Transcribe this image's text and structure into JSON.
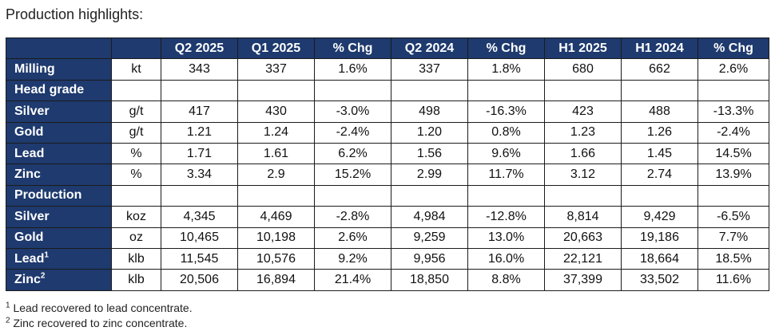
{
  "title": "Production highlights:",
  "headers": [
    "",
    "",
    "Q2 2025",
    "Q1 2025",
    "% Chg",
    "Q2 2024",
    "% Chg",
    "H1 2025",
    "H1 2024",
    "% Chg"
  ],
  "rows": [
    {
      "label": "Milling",
      "sup": "",
      "unit": "kt",
      "values": [
        "343",
        "337",
        "1.6%",
        "337",
        "1.8%",
        "680",
        "662",
        "2.6%"
      ]
    },
    {
      "label": "Head grade",
      "sup": "",
      "unit": "",
      "values": [
        "",
        "",
        "",
        "",
        "",
        "",
        "",
        ""
      ]
    },
    {
      "label": "Silver",
      "sup": "",
      "unit": "g/t",
      "values": [
        "417",
        "430",
        "-3.0%",
        "498",
        "-16.3%",
        "423",
        "488",
        "-13.3%"
      ]
    },
    {
      "label": "Gold",
      "sup": "",
      "unit": "g/t",
      "values": [
        "1.21",
        "1.24",
        "-2.4%",
        "1.20",
        "0.8%",
        "1.23",
        "1.26",
        "-2.4%"
      ]
    },
    {
      "label": "Lead",
      "sup": "",
      "unit": "%",
      "values": [
        "1.71",
        "1.61",
        "6.2%",
        "1.56",
        "9.6%",
        "1.66",
        "1.45",
        "14.5%"
      ]
    },
    {
      "label": "Zinc",
      "sup": "",
      "unit": "%",
      "values": [
        "3.34",
        "2.9",
        "15.2%",
        "2.99",
        "11.7%",
        "3.12",
        "2.74",
        "13.9%"
      ]
    },
    {
      "label": "Production",
      "sup": "",
      "unit": "",
      "values": [
        "",
        "",
        "",
        "",
        "",
        "",
        "",
        ""
      ]
    },
    {
      "label": "Silver",
      "sup": "",
      "unit": "koz",
      "values": [
        "4,345",
        "4,469",
        "-2.8%",
        "4,984",
        "-12.8%",
        "8,814",
        "9,429",
        "-6.5%"
      ]
    },
    {
      "label": "Gold",
      "sup": "",
      "unit": "oz",
      "values": [
        "10,465",
        "10,198",
        "2.6%",
        "9,259",
        "13.0%",
        "20,663",
        "19,186",
        "7.7%"
      ]
    },
    {
      "label": "Lead",
      "sup": "1",
      "unit": "klb",
      "values": [
        "11,545",
        "10,576",
        "9.2%",
        "9,956",
        "16.0%",
        "22,121",
        "18,664",
        "18.5%"
      ]
    },
    {
      "label": "Zinc",
      "sup": "2",
      "unit": "klb",
      "values": [
        "20,506",
        "16,894",
        "21.4%",
        "18,850",
        "8.8%",
        "37,399",
        "33,502",
        "11.6%"
      ]
    }
  ],
  "footnotes": [
    {
      "mark": "1",
      "text": "Lead recovered to lead concentrate."
    },
    {
      "mark": "2",
      "text": "Zinc recovered to zinc concentrate."
    }
  ]
}
